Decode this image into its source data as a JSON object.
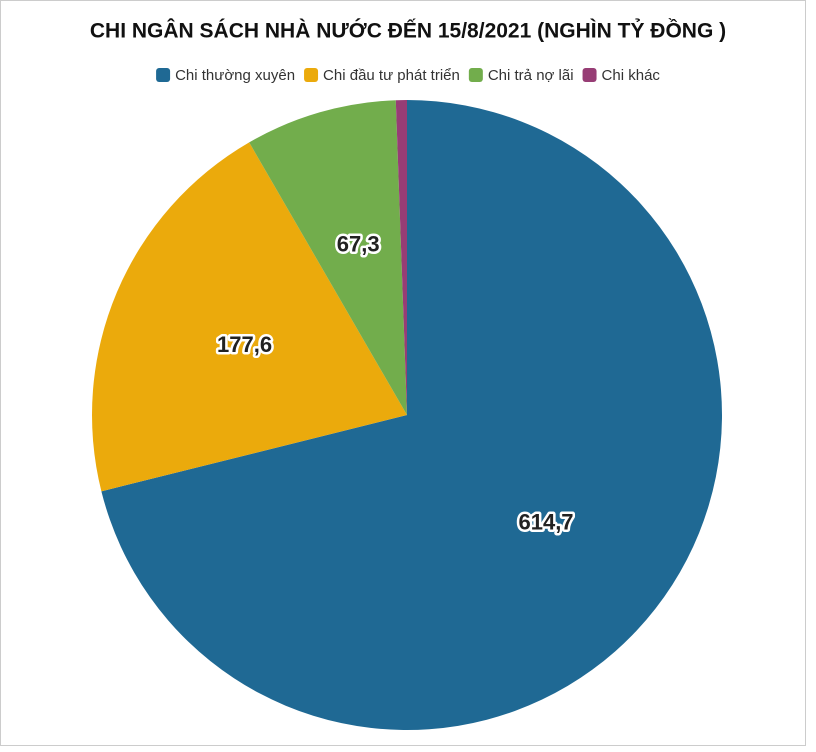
{
  "chart_data": {
    "type": "pie",
    "title": "CHI NGÂN SÁCH NHÀ NƯỚC ĐẾN 15/8/2021 (NGHÌN TỶ ĐỒNG )",
    "categories": [
      "Chi thường xuyên",
      "Chi đầu tư phát triển",
      "Chi trả nợ lãi",
      "Chi khác"
    ],
    "values": [
      614.7,
      177.6,
      67.3,
      4.9
    ],
    "value_labels": [
      "614,7",
      "177,6",
      "67,3",
      null
    ],
    "colors": [
      "#1f6994",
      "#ebaa0c",
      "#72ad4c",
      "#973d75"
    ],
    "legend": "top"
  }
}
